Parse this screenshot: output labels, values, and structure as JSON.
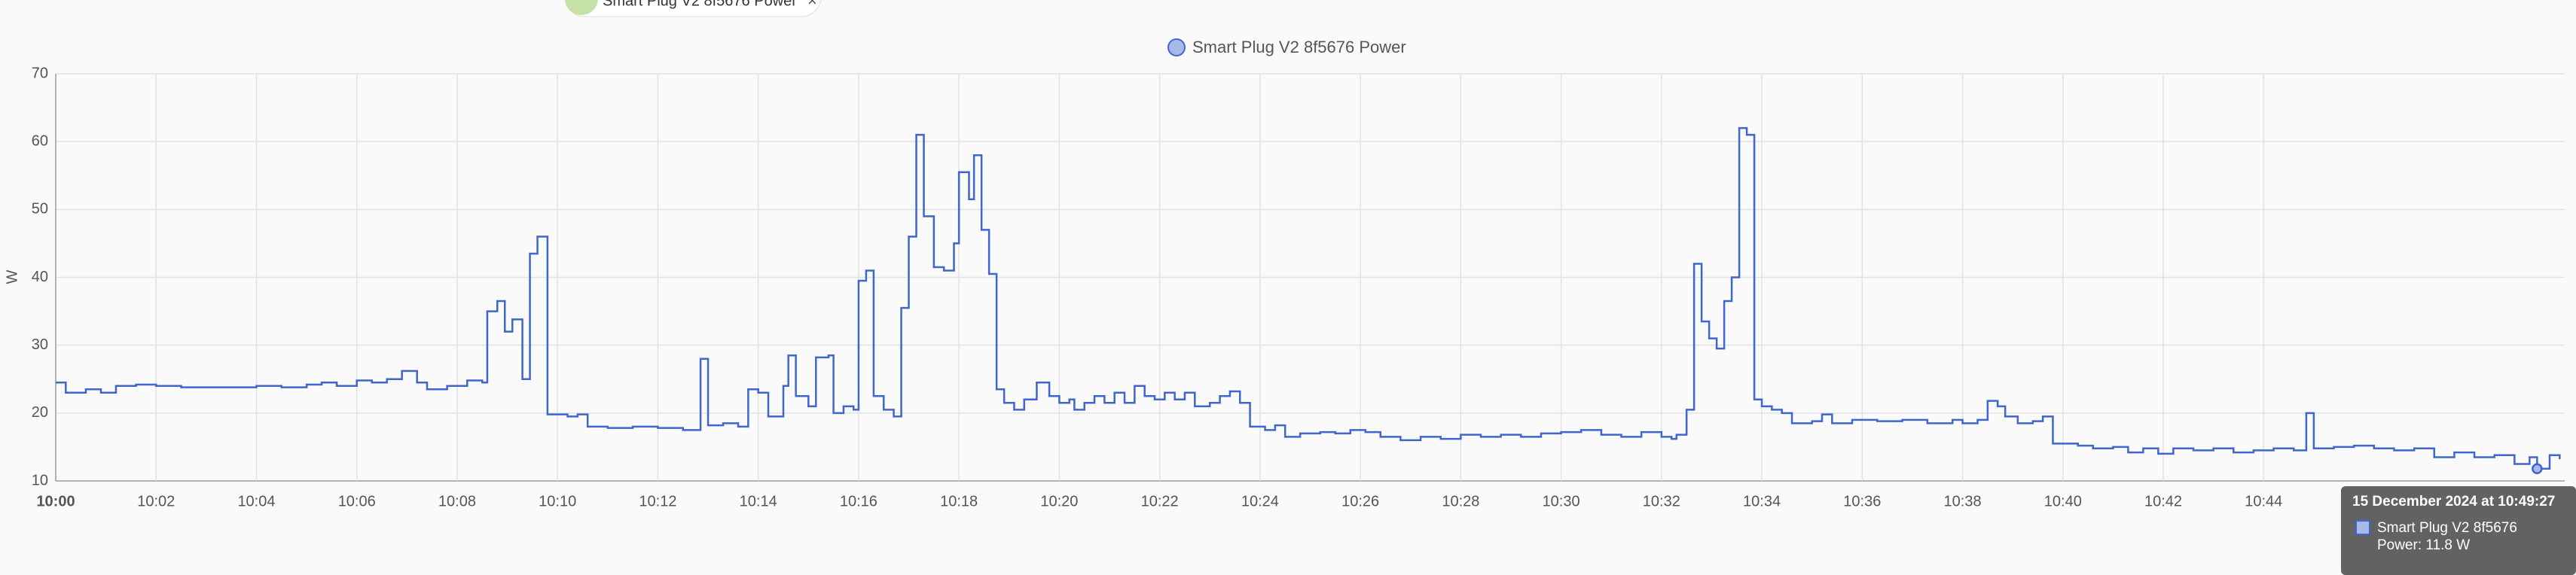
{
  "chart_data": {
    "type": "step",
    "chip_label": "Smart Plug V2 8f5676 Power",
    "ylabel": "W",
    "x": [
      "10:00:00",
      "10:00:12",
      "10:00:36",
      "10:00:54",
      "10:01:12",
      "10:01:36",
      "10:02:00",
      "10:02:30",
      "10:03:00",
      "10:03:30",
      "10:04:00",
      "10:04:30",
      "10:05:00",
      "10:05:18",
      "10:05:36",
      "10:06:00",
      "10:06:18",
      "10:06:36",
      "10:06:54",
      "10:07:12",
      "10:07:24",
      "10:07:48",
      "10:08:12",
      "10:08:30",
      "10:08:36",
      "10:08:48",
      "10:08:57",
      "10:09:06",
      "10:09:18",
      "10:09:27",
      "10:09:36",
      "10:09:48",
      "10:10:12",
      "10:10:24",
      "10:10:36",
      "10:11:00",
      "10:11:30",
      "10:12:00",
      "10:12:30",
      "10:12:51",
      "10:13:00",
      "10:13:18",
      "10:13:36",
      "10:13:48",
      "10:14:00",
      "10:14:12",
      "10:14:30",
      "10:14:36",
      "10:14:45",
      "10:15:00",
      "10:15:09",
      "10:15:24",
      "10:15:30",
      "10:15:42",
      "10:15:54",
      "10:16:00",
      "10:16:09",
      "10:16:18",
      "10:16:30",
      "10:16:42",
      "10:16:51",
      "10:17:00",
      "10:17:09",
      "10:17:18",
      "10:17:30",
      "10:17:42",
      "10:17:54",
      "10:18:00",
      "10:18:12",
      "10:18:18",
      "10:18:27",
      "10:18:36",
      "10:18:45",
      "10:18:54",
      "10:19:06",
      "10:19:18",
      "10:19:33",
      "10:19:48",
      "10:20:00",
      "10:20:12",
      "10:20:18",
      "10:20:30",
      "10:20:42",
      "10:20:54",
      "10:21:06",
      "10:21:18",
      "10:21:30",
      "10:21:42",
      "10:21:54",
      "10:22:06",
      "10:22:18",
      "10:22:30",
      "10:22:42",
      "10:23:00",
      "10:23:12",
      "10:23:24",
      "10:23:36",
      "10:23:48",
      "10:24:06",
      "10:24:18",
      "10:24:30",
      "10:24:48",
      "10:25:12",
      "10:25:30",
      "10:25:48",
      "10:26:06",
      "10:26:24",
      "10:26:48",
      "10:27:12",
      "10:27:36",
      "10:28:00",
      "10:28:24",
      "10:28:48",
      "10:29:12",
      "10:29:36",
      "10:30:00",
      "10:30:24",
      "10:30:48",
      "10:31:12",
      "10:31:36",
      "10:32:00",
      "10:32:12",
      "10:32:18",
      "10:32:30",
      "10:32:39",
      "10:32:48",
      "10:32:57",
      "10:33:06",
      "10:33:15",
      "10:33:24",
      "10:33:33",
      "10:33:42",
      "10:33:51",
      "10:34:00",
      "10:34:12",
      "10:34:24",
      "10:34:36",
      "10:35:00",
      "10:35:12",
      "10:35:24",
      "10:35:48",
      "10:36:18",
      "10:36:48",
      "10:37:18",
      "10:37:48",
      "10:38:00",
      "10:38:18",
      "10:38:30",
      "10:38:42",
      "10:38:51",
      "10:39:06",
      "10:39:24",
      "10:39:36",
      "10:39:48",
      "10:40:18",
      "10:40:36",
      "10:41:00",
      "10:41:18",
      "10:41:36",
      "10:41:54",
      "10:42:12",
      "10:42:36",
      "10:43:00",
      "10:43:24",
      "10:43:48",
      "10:44:12",
      "10:44:36",
      "10:44:51",
      "10:45:00",
      "10:45:24",
      "10:45:48",
      "10:46:12",
      "10:46:36",
      "10:47:00",
      "10:47:24",
      "10:47:48",
      "10:48:12",
      "10:48:36",
      "10:49:00",
      "10:49:18",
      "10:49:27",
      "10:49:42",
      "10:49:54"
    ],
    "series": [
      {
        "name": "Smart Plug V2 8f5676 Power",
        "color": "#3f66cc",
        "values": [
          24.5,
          23,
          23.5,
          23,
          24,
          24.2,
          24,
          23.8,
          23.8,
          23.8,
          24,
          23.8,
          24.2,
          24.5,
          24,
          24.8,
          24.5,
          25,
          26.2,
          24.5,
          23.5,
          24,
          24.8,
          24.5,
          35,
          36.5,
          32,
          33.8,
          25,
          43.5,
          46,
          19.8,
          19.5,
          19.8,
          18,
          17.8,
          18,
          17.8,
          17.5,
          28,
          18.2,
          18.5,
          18,
          23.5,
          23,
          19.5,
          24,
          28.5,
          22.5,
          21,
          28.2,
          28.5,
          20,
          21,
          20.5,
          39.5,
          41,
          22.5,
          20.5,
          19.5,
          35.5,
          46,
          61,
          49,
          41.5,
          41,
          45,
          55.5,
          51.5,
          58,
          47,
          40.5,
          23.5,
          21.5,
          20.5,
          22,
          24.5,
          22.5,
          21.5,
          22,
          20.5,
          21.5,
          22.5,
          21.5,
          23,
          21.5,
          24,
          22.5,
          22,
          23,
          22,
          23,
          21,
          21.5,
          22.5,
          23.2,
          21.5,
          18,
          17.5,
          18.2,
          16.5,
          17,
          17.2,
          17,
          17.5,
          17.2,
          16.5,
          16,
          16.5,
          16.2,
          16.8,
          16.5,
          16.8,
          16.5,
          17,
          17.2,
          17.5,
          16.8,
          16.5,
          17.2,
          16.5,
          16.2,
          16.8,
          20.5,
          42,
          33.5,
          31,
          29.5,
          36.5,
          40,
          62,
          61,
          22,
          21,
          20.5,
          20,
          18.5,
          18.8,
          19.8,
          18.5,
          19,
          18.8,
          19,
          18.5,
          19,
          18.5,
          19,
          21.8,
          21,
          19.5,
          18.5,
          18.8,
          19.5,
          15.5,
          15.2,
          14.8,
          15,
          14.2,
          14.8,
          14,
          14.8,
          14.5,
          14.8,
          14.2,
          14.5,
          14.8,
          14.5,
          20,
          14.8,
          15,
          15.2,
          14.8,
          14.5,
          14.8,
          13.5,
          14.2,
          13.5,
          13.8,
          12.5,
          13.5,
          11.8,
          13.8,
          13.2
        ]
      }
    ],
    "xlim": [
      "10:00:00",
      "10:50:00"
    ],
    "xticks": [
      "10:00",
      "10:02",
      "10:04",
      "10:06",
      "10:08",
      "10:10",
      "10:12",
      "10:14",
      "10:16",
      "10:18",
      "10:20",
      "10:22",
      "10:24",
      "10:26",
      "10:28",
      "10:30",
      "10:32",
      "10:34",
      "10:36",
      "10:38",
      "10:40",
      "10:42",
      "10:44"
    ],
    "ylim": [
      10,
      70
    ],
    "yticks": [
      10,
      20,
      30,
      40,
      50,
      60,
      70
    ],
    "grid": true,
    "tooltip": {
      "index": 180,
      "title": "15 December 2024 at 10:49:27",
      "series": "Smart Plug V2 8f5676",
      "label": "Power: 11.8 W"
    }
  }
}
